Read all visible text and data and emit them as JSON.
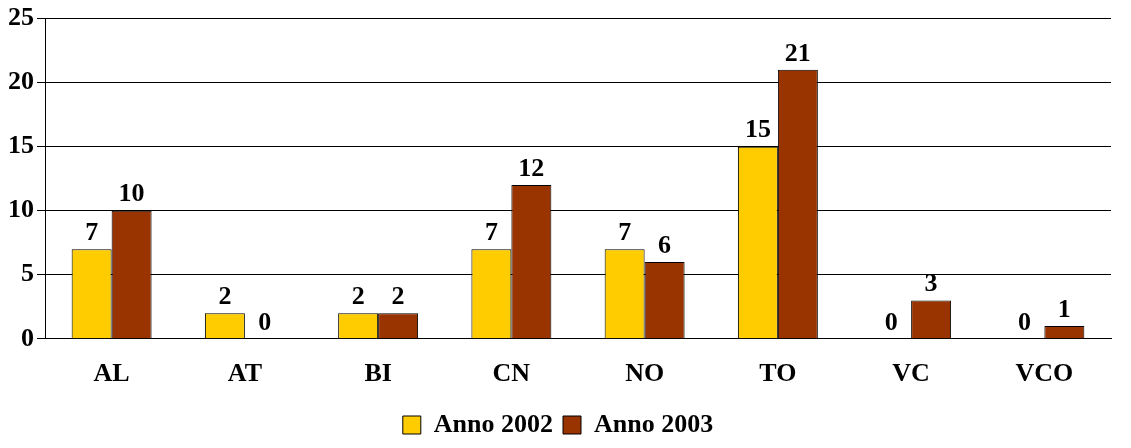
{
  "chart_data": {
    "type": "bar",
    "categories": [
      "AL",
      "AT",
      "BI",
      "CN",
      "NO",
      "TO",
      "VC",
      "VCO"
    ],
    "series": [
      {
        "name": "Anno 2002",
        "color": "#ffcc00",
        "values": [
          7,
          2,
          2,
          7,
          7,
          15,
          0,
          0
        ]
      },
      {
        "name": "Anno 2003",
        "color": "#993300",
        "values": [
          10,
          0,
          2,
          12,
          6,
          21,
          3,
          1
        ]
      }
    ],
    "ylim": [
      0,
      25
    ],
    "yticks": [
      0,
      5,
      10,
      15,
      20,
      25
    ],
    "grid": "y",
    "legend": "bottom",
    "data_labels": true
  }
}
